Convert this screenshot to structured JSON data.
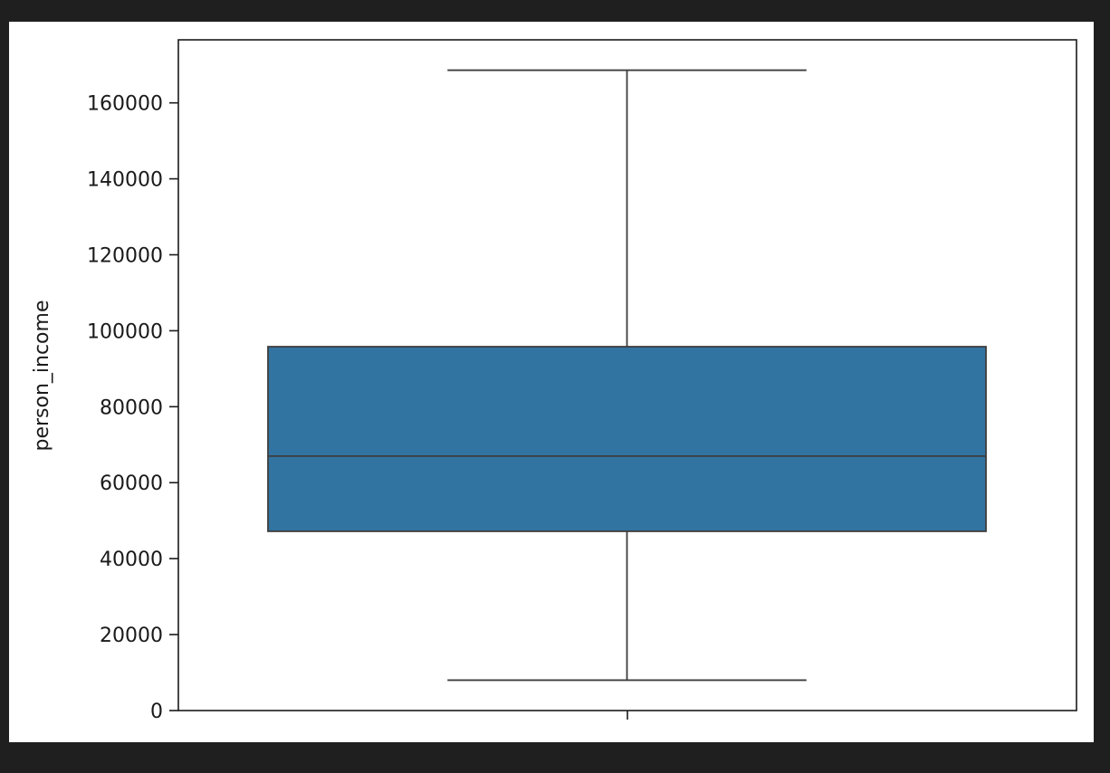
{
  "chart_data": {
    "type": "box",
    "title": "",
    "xlabel": "",
    "ylabel": "person_income",
    "ylim": [
      0,
      176600
    ],
    "yticks": [
      0,
      20000,
      40000,
      60000,
      80000,
      100000,
      120000,
      140000,
      160000
    ],
    "ytick_labels": [
      "0",
      "20000",
      "40000",
      "60000",
      "80000",
      "100000",
      "120000",
      "140000",
      "160000"
    ],
    "grid": false,
    "series": [
      {
        "color": "#3274a1",
        "whisker_low": 8000,
        "q1": 47200,
        "median": 67000,
        "q3": 95800,
        "whisker_high": 168600
      }
    ]
  }
}
